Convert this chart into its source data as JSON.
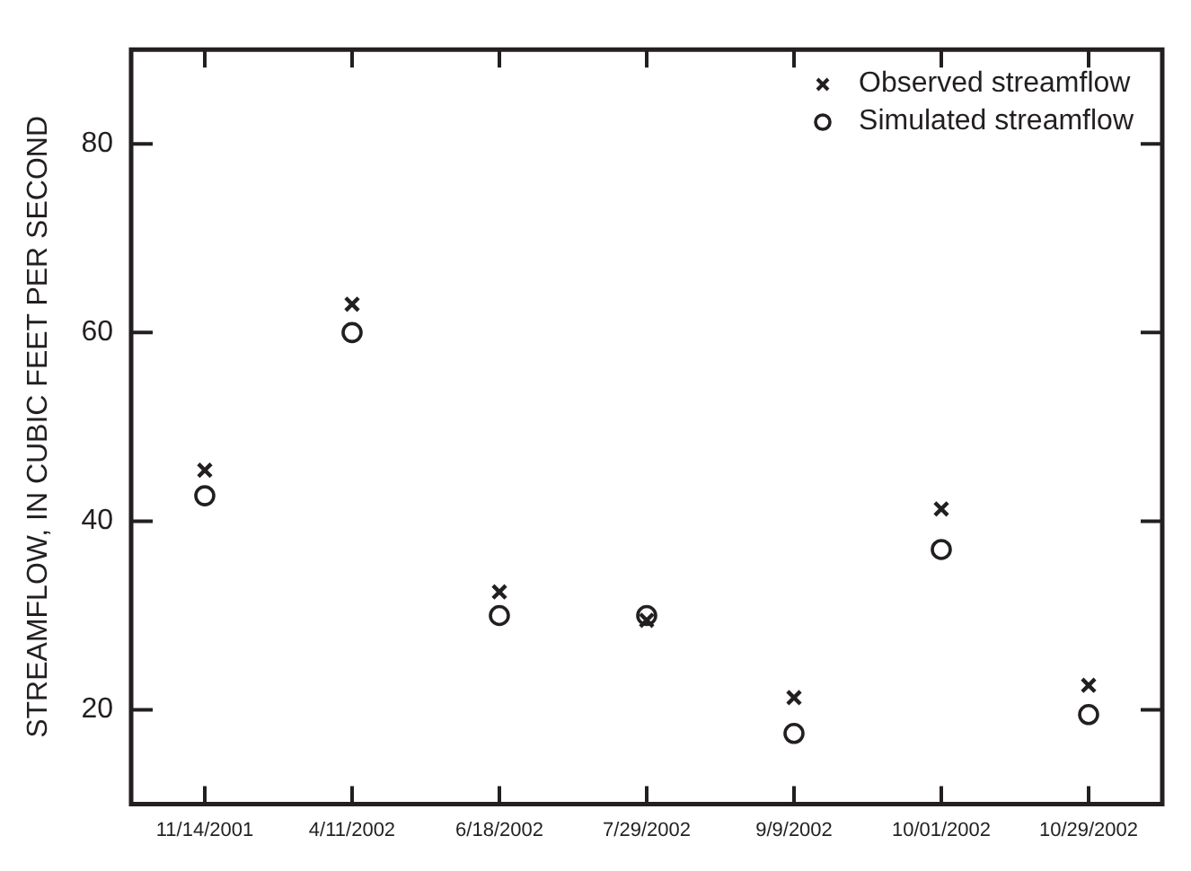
{
  "chart_data": {
    "type": "scatter",
    "ylabel": "STREAMFLOW, IN CUBIC FEET PER SECOND",
    "categories": [
      "11/14/2001",
      "4/11/2002",
      "6/18/2002",
      "7/29/2002",
      "9/9/2002",
      "10/01/2002",
      "10/29/2002"
    ],
    "series": [
      {
        "name": "Observed streamflow",
        "color": "#231f20",
        "marker": "cross",
        "values": [
          45.4,
          63.0,
          32.5,
          29.5,
          21.3,
          41.3,
          22.6
        ]
      },
      {
        "name": "Simulated streamflow",
        "color": "#231f20",
        "marker": "circle",
        "values": [
          42.7,
          60.0,
          30.0,
          30.0,
          17.5,
          37.0,
          19.5
        ]
      }
    ],
    "ylim": [
      10,
      90
    ],
    "yticks": [
      20,
      40,
      60,
      80
    ],
    "grid": false,
    "legend": "top right"
  }
}
